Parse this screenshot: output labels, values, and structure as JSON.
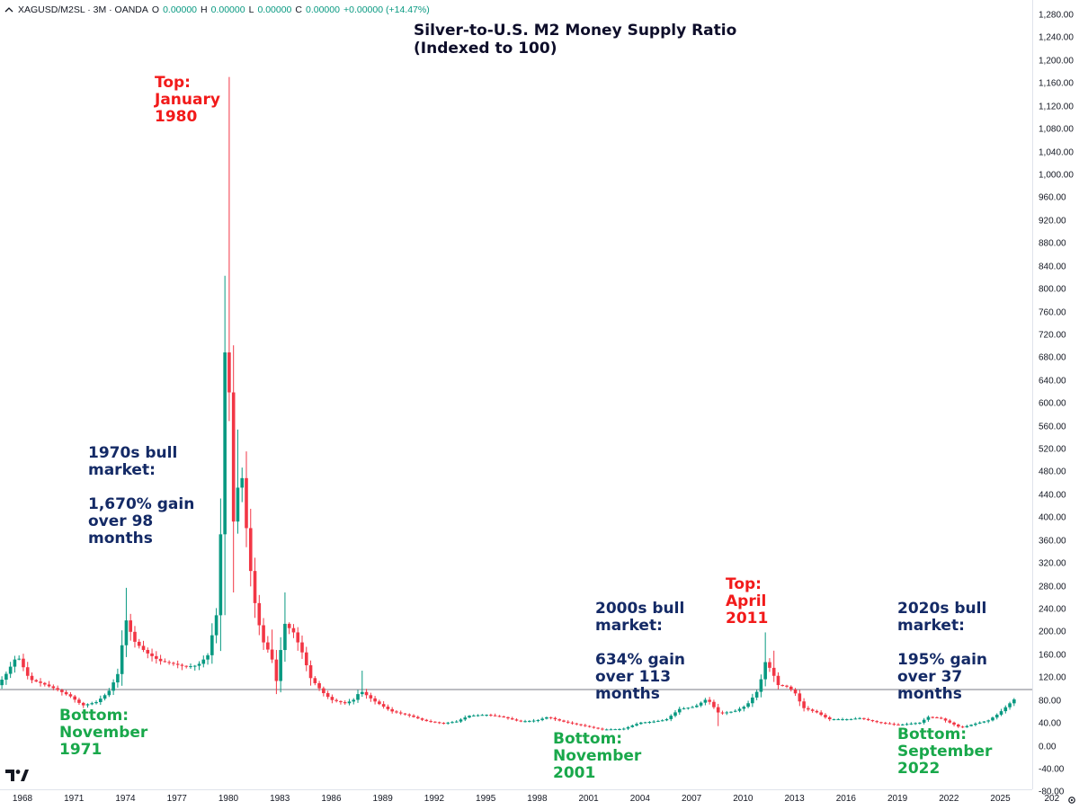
{
  "legend": {
    "symbol": "XAGUSD/M2SL · 3M · OANDA",
    "o_label": "O",
    "o_value": "0.00000",
    "h_label": "H",
    "h_value": "0.00000",
    "l_label": "L",
    "l_value": "0.00000",
    "c_label": "C",
    "c_value": "0.00000",
    "change": "+0.00000 (+14.47%)"
  },
  "chart_data": {
    "type": "candlestick",
    "title": "Silver-to-U.S. M2 Money Supply Ratio",
    "subtitle": "(Indexed to 100)",
    "ylim": [
      -100,
      1300
    ],
    "yticks": [
      "1,280.00",
      "1,240.00",
      "1,200.00",
      "1,160.00",
      "1,120.00",
      "1,080.00",
      "1,040.00",
      "1,000.00",
      "960.00",
      "920.00",
      "880.00",
      "840.00",
      "800.00",
      "760.00",
      "720.00",
      "680.00",
      "640.00",
      "600.00",
      "560.00",
      "520.00",
      "480.00",
      "440.00",
      "400.00",
      "360.00",
      "320.00",
      "280.00",
      "240.00",
      "200.00",
      "160.00",
      "120.00",
      "80.00",
      "40.00",
      "0.00",
      "-40.00",
      "-80.00"
    ],
    "xticks": [
      "1968",
      "1971",
      "1974",
      "1977",
      "1980",
      "1983",
      "1986",
      "1989",
      "1992",
      "1995",
      "1998",
      "2001",
      "2004",
      "2007",
      "2010",
      "2013",
      "2016",
      "2019",
      "2022",
      "2025",
      "202"
    ],
    "reference_line": 100,
    "colors": {
      "up": "#089981",
      "down": "#f23645",
      "reference": "#787b86"
    },
    "anchors": [
      [
        1966.3,
        98
      ],
      [
        1967.0,
        125
      ],
      [
        1967.7,
        160
      ],
      [
        1968.4,
        118
      ],
      [
        1969.2,
        110
      ],
      [
        1970.0,
        100
      ],
      [
        1970.8,
        88
      ],
      [
        1971.5,
        72
      ],
      [
        1972.3,
        78
      ],
      [
        1973.0,
        95
      ],
      [
        1973.6,
        130
      ],
      [
        1974.0,
        225
      ],
      [
        1974.5,
        185
      ],
      [
        1975.2,
        165
      ],
      [
        1976.0,
        150
      ],
      [
        1976.8,
        145
      ],
      [
        1977.5,
        140
      ],
      [
        1978.2,
        142
      ],
      [
        1978.8,
        160
      ],
      [
        1979.3,
        230
      ],
      [
        1979.6,
        400
      ],
      [
        1979.8,
        690
      ],
      [
        1980.0,
        680
      ],
      [
        1980.25,
        380
      ],
      [
        1980.5,
        450
      ],
      [
        1980.8,
        470
      ],
      [
        1981.2,
        330
      ],
      [
        1981.6,
        240
      ],
      [
        1982.0,
        185
      ],
      [
        1982.5,
        160
      ],
      [
        1982.8,
        115
      ],
      [
        1983.0,
        160
      ],
      [
        1983.3,
        215
      ],
      [
        1983.8,
        200
      ],
      [
        1984.3,
        165
      ],
      [
        1984.8,
        120
      ],
      [
        1985.5,
        95
      ],
      [
        1986.0,
        82
      ],
      [
        1986.8,
        76
      ],
      [
        1987.3,
        82
      ],
      [
        1987.7,
        98
      ],
      [
        1988.5,
        80
      ],
      [
        1989.5,
        62
      ],
      [
        1990.5,
        55
      ],
      [
        1991.5,
        45
      ],
      [
        1992.5,
        41
      ],
      [
        1993.3,
        44
      ],
      [
        1994.0,
        54
      ],
      [
        1995.0,
        56
      ],
      [
        1996.0,
        52
      ],
      [
        1997.0,
        44
      ],
      [
        1998.0,
        46
      ],
      [
        1998.6,
        52
      ],
      [
        1999.5,
        44
      ],
      [
        2000.5,
        38
      ],
      [
        2001.8,
        30
      ],
      [
        2003.0,
        31
      ],
      [
        2004.0,
        42
      ],
      [
        2004.8,
        44
      ],
      [
        2005.5,
        47
      ],
      [
        2006.3,
        66
      ],
      [
        2007.2,
        70
      ],
      [
        2007.9,
        84
      ],
      [
        2008.6,
        58
      ],
      [
        2009.5,
        62
      ],
      [
        2010.2,
        72
      ],
      [
        2010.9,
        100
      ],
      [
        2011.3,
        148
      ],
      [
        2011.7,
        132
      ],
      [
        2012.0,
        108
      ],
      [
        2012.5,
        106
      ],
      [
        2013.0,
        96
      ],
      [
        2013.5,
        68
      ],
      [
        2014.3,
        60
      ],
      [
        2015.0,
        48
      ],
      [
        2016.2,
        48
      ],
      [
        2016.8,
        50
      ],
      [
        2017.8,
        43
      ],
      [
        2019.0,
        38
      ],
      [
        2020.3,
        42
      ],
      [
        2020.8,
        52
      ],
      [
        2021.5,
        50
      ],
      [
        2022.7,
        33
      ],
      [
        2023.5,
        40
      ],
      [
        2024.3,
        46
      ],
      [
        2024.9,
        58
      ],
      [
        2025.7,
        80
      ],
      [
        2025.85,
        84
      ]
    ],
    "spikes": [
      {
        "x": 1980.0,
        "high": 1172
      },
      {
        "x": 1974.0,
        "high": 278
      },
      {
        "x": 1980.5,
        "high": 555
      },
      {
        "x": 1980.25,
        "low": 270
      },
      {
        "x": 1983.3,
        "high": 270
      },
      {
        "x": 1982.5,
        "high": 205
      },
      {
        "x": 1987.7,
        "high": 133
      },
      {
        "x": 1979.6,
        "low": 245
      },
      {
        "x": 2011.3,
        "high": 200
      },
      {
        "x": 2011.7,
        "high": 168
      },
      {
        "x": 2008.6,
        "low": 36
      },
      {
        "x": 1982.8,
        "low": 92
      }
    ]
  },
  "annotations": {
    "top_1980": "Top:\nJanuary\n1980",
    "bull_1970s": "1970s bull\nmarket:\n\n1,670% gain\nover 98\nmonths",
    "bottom_1971": "Bottom:\nNovember\n1971",
    "bull_2000s": "2000s bull\nmarket:\n\n634% gain\nover 113\nmonths",
    "top_2011": "Top:\nApril\n2011",
    "bottom_2001": "Bottom:\nNovember\n2001",
    "bull_2020s": "2020s bull\nmarket:\n\n195% gain\nover 37\nmonths",
    "bottom_2022": "Bottom:\nSeptember\n2022"
  },
  "icons": {
    "logo": "tradingview-logo-icon",
    "settings": "settings-gear-icon",
    "collapse": "collapse-arrow-icon"
  }
}
